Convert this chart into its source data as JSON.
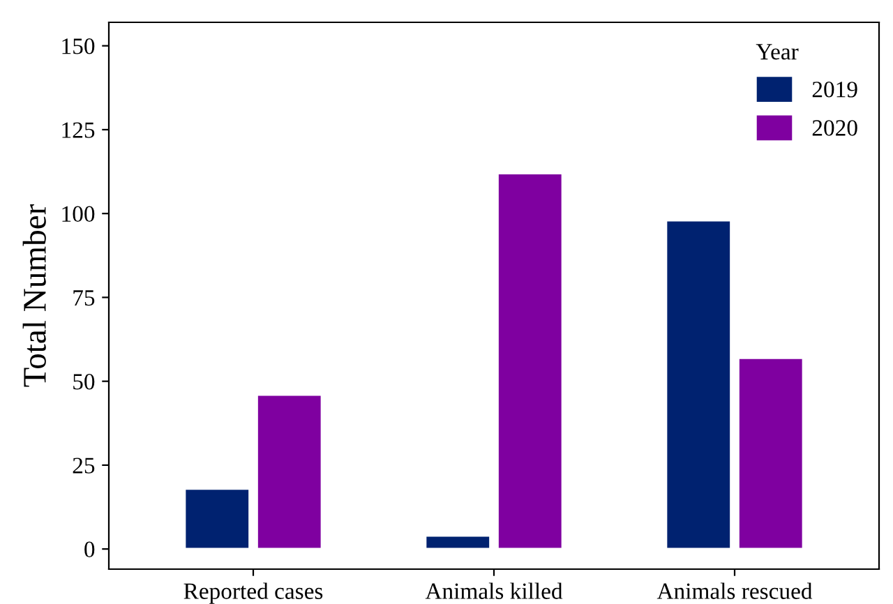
{
  "chart_data": {
    "type": "bar",
    "ylabel": "Total Number",
    "legend_title": "Year",
    "categories": [
      "Reported cases",
      "Animals killed",
      "Animals rescued"
    ],
    "series": [
      {
        "name": "2019",
        "color": "#002270",
        "values": [
          18,
          4,
          98
        ]
      },
      {
        "name": "2020",
        "color": "#7f00a0",
        "values": [
          46,
          112,
          57
        ]
      }
    ],
    "ylim": [
      -6,
      157
    ],
    "yticks": [
      0,
      25,
      50,
      75,
      100,
      125,
      150
    ],
    "grid": false,
    "legend": "top right"
  }
}
